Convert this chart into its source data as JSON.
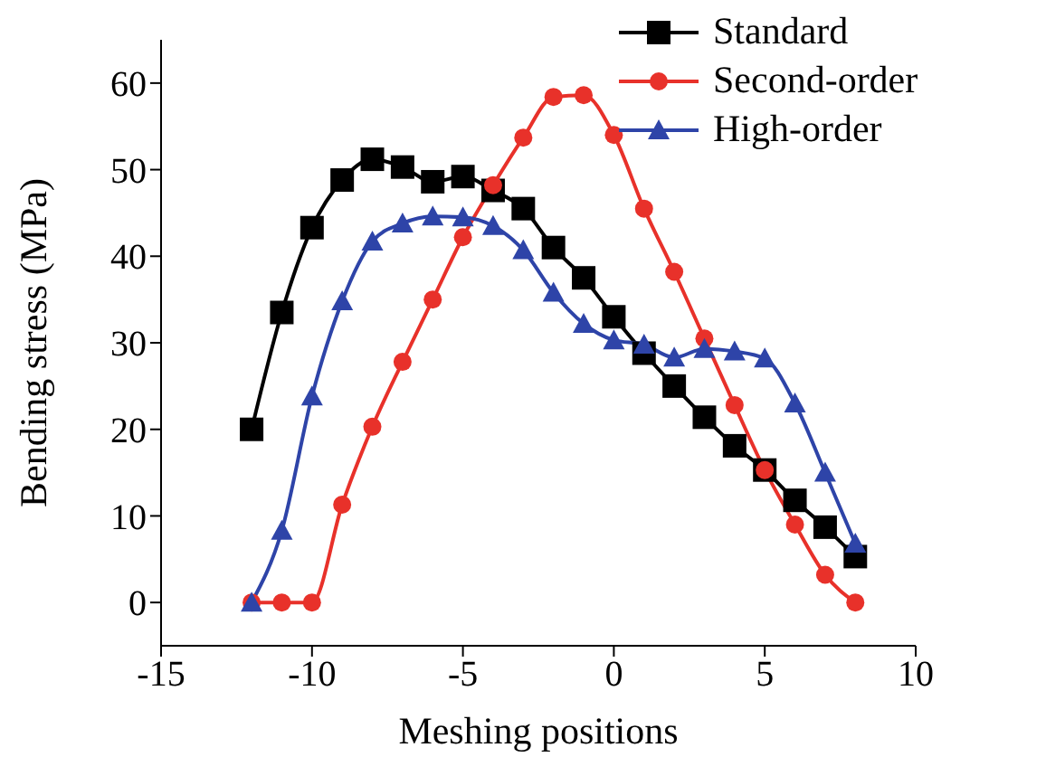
{
  "chart_data": {
    "type": "line",
    "xlabel": "Meshing positions",
    "ylabel": "Bending stress (MPa)",
    "x": [
      -12,
      -11,
      -10,
      -9,
      -8,
      -7,
      -6,
      -5,
      -4,
      -3,
      -2,
      -1,
      0,
      1,
      2,
      3,
      4,
      5,
      6,
      7,
      8
    ],
    "series": [
      {
        "name": "Standard",
        "color": "#000000",
        "marker": "square",
        "values": [
          20,
          33.5,
          43.3,
          48.8,
          51.2,
          50.3,
          48.6,
          49.2,
          47.6,
          45.5,
          41,
          37.5,
          33,
          28.8,
          25,
          21.4,
          18.1,
          15.3,
          11.8,
          8.7,
          5.3
        ]
      },
      {
        "name": "Second-order",
        "color": "#e8312a",
        "marker": "circle",
        "values": [
          0,
          0,
          0,
          11.3,
          20.3,
          27.8,
          35,
          42.2,
          48.2,
          53.7,
          58.4,
          58.6,
          54,
          45.5,
          38.2,
          30.5,
          22.8,
          15.3,
          9,
          3.2,
          0
        ]
      },
      {
        "name": "High-order",
        "color": "#2e44a8",
        "marker": "triangle",
        "values": [
          0,
          8.3,
          23.8,
          34.8,
          41.7,
          43.8,
          44.6,
          44.5,
          43.5,
          40.7,
          35.8,
          32.2,
          30.3,
          29.8,
          28.3,
          29.3,
          29,
          28.2,
          23,
          15,
          6.8
        ]
      }
    ],
    "xlim": [
      -15,
      10
    ],
    "xticks": [
      -15,
      -10,
      -5,
      0,
      5,
      10
    ],
    "ylim": [
      -5,
      65
    ],
    "yticks": [
      0,
      10,
      20,
      30,
      40,
      50,
      60
    ],
    "grid": false,
    "legend": "top right",
    "line_style": "solid"
  }
}
